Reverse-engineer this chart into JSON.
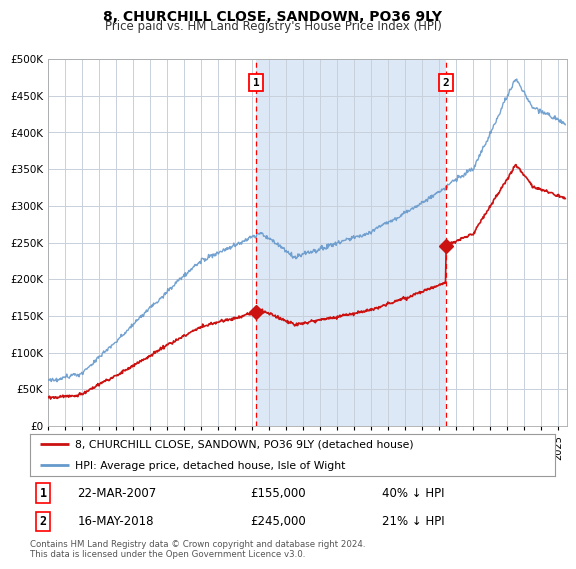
{
  "title": "8, CHURCHILL CLOSE, SANDOWN, PO36 9LY",
  "subtitle": "Price paid vs. HM Land Registry's House Price Index (HPI)",
  "ylim": [
    0,
    500000
  ],
  "xlim_start": 1995.0,
  "xlim_end": 2025.5,
  "fig_bg_color": "#ffffff",
  "plot_bg_color": "#dce8f5",
  "plot_left_bg": "#ffffff",
  "grid_color": "#c8d0dc",
  "hpi_color": "#6699cc",
  "price_color": "#cc1111",
  "marker1_x": 2007.22,
  "marker1_y": 155000,
  "marker1_label": "22-MAR-2007",
  "marker1_price": "£155,000",
  "marker1_hpi": "40% ↓ HPI",
  "marker2_x": 2018.37,
  "marker2_y": 245000,
  "marker2_label": "16-MAY-2018",
  "marker2_price": "£245,000",
  "marker2_hpi": "21% ↓ HPI",
  "footer": "Contains HM Land Registry data © Crown copyright and database right 2024.\nThis data is licensed under the Open Government Licence v3.0.",
  "legend_line1": "8, CHURCHILL CLOSE, SANDOWN, PO36 9LY (detached house)",
  "legend_line2": "HPI: Average price, detached house, Isle of Wight"
}
